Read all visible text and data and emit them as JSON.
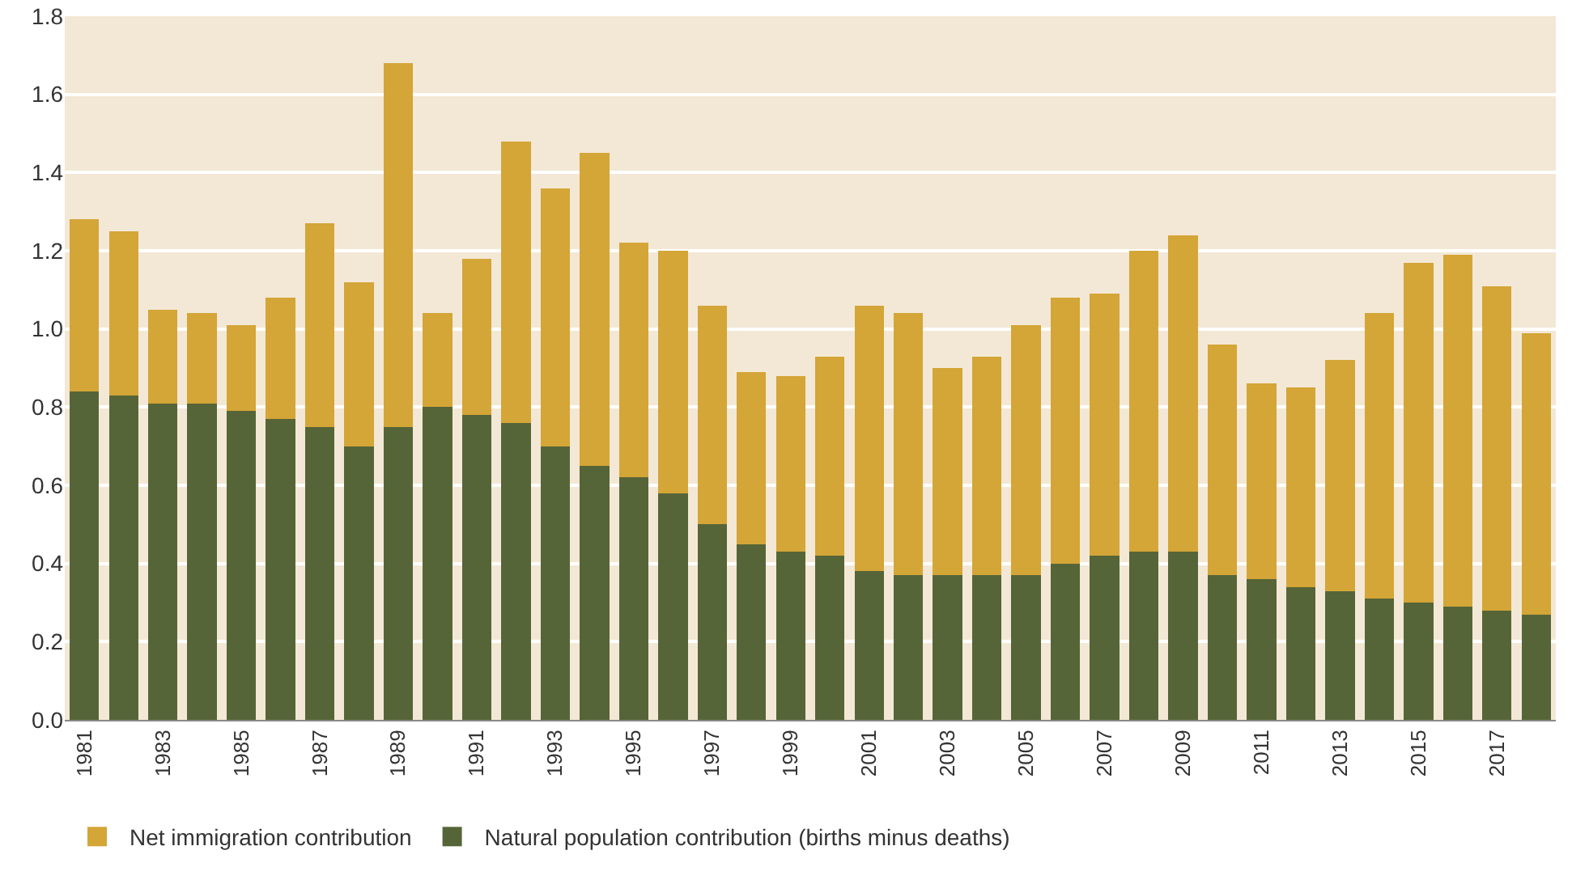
{
  "chart_data": {
    "type": "bar",
    "stacked": true,
    "categories": [
      "1981",
      null,
      "1983",
      null,
      "1985",
      null,
      "1987",
      null,
      "1989",
      null,
      "1991",
      null,
      "1993",
      null,
      "1995",
      null,
      "1997",
      null,
      "1999",
      null,
      "2001",
      null,
      "2003",
      null,
      "2005",
      null,
      "2007",
      null,
      "2009",
      null,
      "2011",
      null,
      "2013",
      null,
      "2015",
      null,
      "2017",
      null
    ],
    "series": [
      {
        "name": "Natural population contribution (births minus deaths)",
        "color": "#566537",
        "values": [
          0.84,
          0.83,
          0.81,
          0.81,
          0.79,
          0.77,
          0.75,
          0.7,
          0.75,
          0.8,
          0.78,
          0.76,
          0.7,
          0.65,
          0.62,
          0.58,
          0.5,
          0.45,
          0.43,
          0.42,
          0.38,
          0.37,
          0.37,
          0.37,
          0.37,
          0.4,
          0.42,
          0.43,
          0.43,
          0.37,
          0.36,
          0.34,
          0.33,
          0.31,
          0.3,
          0.29,
          0.28,
          0.27
        ]
      },
      {
        "name": "Net immigration contribution",
        "color": "#d4a537",
        "values": [
          0.44,
          0.42,
          0.24,
          0.23,
          0.22,
          0.31,
          0.52,
          0.42,
          0.93,
          0.24,
          0.4,
          0.72,
          0.66,
          0.8,
          0.6,
          0.62,
          0.56,
          0.44,
          0.45,
          0.51,
          0.68,
          0.67,
          0.53,
          0.56,
          0.64,
          0.68,
          0.67,
          0.77,
          0.81,
          0.59,
          0.5,
          0.51,
          0.59,
          0.73,
          0.87,
          0.9,
          0.83,
          0.72
        ]
      }
    ],
    "ylim": [
      0,
      1.8
    ],
    "yticks": [
      {
        "value": 0,
        "label": "0.0"
      },
      0.2,
      0.4,
      0.6,
      0.8,
      {
        "value": 1,
        "label": "1.0"
      },
      1.2,
      1.4,
      1.6,
      1.8
    ],
    "grid": "y",
    "legend": "bottom"
  }
}
